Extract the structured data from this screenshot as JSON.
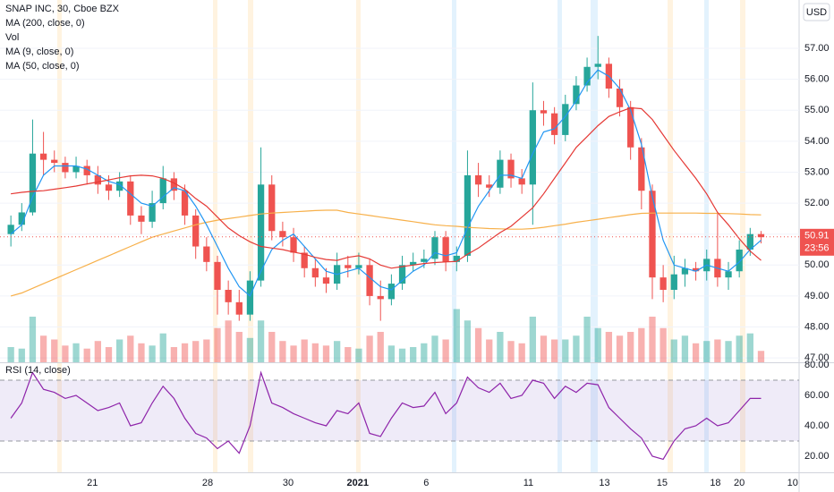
{
  "chart_data": [
    {
      "type": "candlestick",
      "title": "SNAP INC, 30, Cboe BZX",
      "currency": "USD",
      "xlim": [
        -1,
        72.5
      ],
      "ylim": [
        46.86,
        58.56
      ],
      "yticks": [
        {
          "value": 47,
          "label": "47.00"
        },
        {
          "value": 48,
          "label": "48.00"
        },
        {
          "value": 49,
          "label": "49.00"
        },
        {
          "value": 50,
          "label": "50.00"
        },
        {
          "value": 51,
          "label": "51.00"
        },
        {
          "value": 52,
          "label": "52.00"
        },
        {
          "value": 53,
          "label": "53.00"
        },
        {
          "value": 54,
          "label": "54.00"
        },
        {
          "value": 55,
          "label": "55.00"
        },
        {
          "value": 56,
          "label": "56.00"
        },
        {
          "value": 57,
          "label": "57.00"
        }
      ],
      "up_color": "#26a69a",
      "down_color": "#ef5350",
      "open": [
        51.0,
        51.3,
        51.7,
        53.6,
        53.4,
        53.3,
        53.0,
        53.2,
        52.9,
        52.6,
        52.4,
        52.7,
        51.6,
        51.4,
        52.0,
        52.8,
        52.4,
        51.6,
        50.6,
        50.1,
        49.2,
        48.8,
        48.4,
        49.5,
        52.6,
        51.1,
        50.9,
        50.4,
        49.9,
        49.6,
        49.4,
        50.0,
        49.9,
        50.0,
        49.0,
        48.9,
        49.4,
        50.0,
        50.1,
        50.2,
        50.9,
        50.1,
        50.3,
        52.9,
        52.6,
        52.5,
        53.4,
        52.8,
        52.6,
        55.0,
        54.9,
        54.2,
        55.2,
        55.8,
        56.4,
        56.5,
        55.7,
        55.1,
        53.8,
        52.4,
        49.6,
        49.2,
        49.7,
        49.9,
        49.8,
        50.2,
        49.6,
        49.8,
        50.5,
        51.0
      ],
      "high": [
        51.6,
        52.0,
        54.7,
        54.3,
        53.7,
        53.5,
        53.5,
        53.4,
        53.2,
        52.9,
        53.0,
        52.9,
        51.9,
        52.4,
        53.2,
        53.0,
        52.6,
        51.8,
        50.9,
        50.3,
        49.5,
        49.2,
        49.8,
        53.8,
        52.9,
        51.4,
        51.2,
        50.6,
        50.2,
        49.9,
        50.4,
        50.3,
        50.4,
        50.2,
        49.5,
        49.7,
        50.3,
        50.4,
        50.5,
        51.1,
        51.1,
        50.6,
        53.7,
        53.3,
        52.9,
        53.7,
        53.6,
        53.1,
        55.9,
        55.3,
        55.1,
        55.5,
        56.1,
        56.7,
        57.4,
        56.7,
        56.0,
        55.3,
        54.1,
        52.6,
        50.0,
        50.3,
        50.2,
        50.1,
        50.5,
        51.7,
        50.1,
        50.8,
        51.2,
        51.1
      ],
      "low": [
        50.6,
        51.1,
        51.6,
        52.9,
        53.0,
        52.8,
        52.8,
        52.6,
        52.3,
        52.1,
        52.2,
        51.3,
        51.0,
        51.2,
        51.8,
        52.1,
        51.3,
        50.2,
        49.8,
        48.4,
        48.4,
        48.2,
        48.2,
        49.3,
        50.8,
        50.6,
        50.1,
        49.6,
        49.3,
        49.1,
        49.2,
        49.6,
        49.7,
        48.7,
        48.2,
        48.7,
        49.2,
        49.8,
        49.9,
        50.0,
        49.8,
        49.8,
        50.1,
        52.2,
        52.2,
        52.3,
        52.5,
        52.3,
        51.3,
        54.5,
        53.9,
        54.0,
        55.0,
        55.6,
        56.0,
        55.4,
        54.8,
        53.4,
        51.8,
        48.9,
        48.8,
        48.9,
        49.3,
        49.5,
        49.5,
        49.3,
        49.2,
        49.6,
        50.3,
        50.7
      ],
      "close": [
        51.3,
        51.7,
        53.6,
        53.4,
        53.3,
        53.0,
        53.2,
        52.9,
        52.6,
        52.4,
        52.7,
        51.6,
        51.4,
        52.0,
        52.8,
        52.4,
        51.6,
        50.6,
        50.1,
        49.2,
        48.8,
        48.4,
        49.5,
        52.6,
        51.1,
        50.9,
        50.4,
        49.9,
        49.6,
        49.4,
        50.0,
        49.9,
        50.0,
        49.0,
        48.9,
        49.4,
        50.0,
        50.1,
        50.2,
        50.9,
        50.1,
        50.3,
        52.9,
        52.6,
        52.5,
        53.4,
        52.8,
        52.6,
        55.0,
        54.9,
        54.2,
        55.2,
        55.8,
        56.4,
        56.5,
        55.7,
        55.1,
        53.8,
        52.4,
        49.6,
        49.2,
        49.7,
        49.9,
        49.8,
        50.2,
        49.6,
        49.8,
        50.5,
        51.0,
        50.9
      ],
      "last_price": 50.91,
      "countdown": "23:56",
      "series": [
        {
          "name": "MA (200, close, 0)",
          "kind": "line",
          "color": "#f7b04a",
          "values": [
            49.0,
            49.1,
            49.25,
            49.4,
            49.55,
            49.7,
            49.85,
            50.0,
            50.15,
            50.3,
            50.45,
            50.6,
            50.75,
            50.9,
            51.0,
            51.1,
            51.2,
            51.3,
            51.38,
            51.45,
            51.5,
            51.55,
            51.6,
            51.65,
            51.68,
            51.7,
            51.72,
            51.74,
            51.76,
            51.77,
            51.77,
            51.7,
            51.65,
            51.6,
            51.55,
            51.5,
            51.45,
            51.4,
            51.35,
            51.3,
            51.27,
            51.25,
            51.22,
            51.2,
            51.18,
            51.17,
            51.16,
            51.16,
            51.18,
            51.22,
            51.27,
            51.32,
            51.38,
            51.43,
            51.48,
            51.53,
            51.58,
            51.63,
            51.67,
            51.68,
            51.68,
            51.68,
            51.68,
            51.68,
            51.67,
            51.67,
            51.66,
            51.65,
            51.63,
            51.62
          ]
        },
        {
          "name": "Vol",
          "kind": "volume",
          "values": [
            20,
            18,
            60,
            35,
            30,
            22,
            25,
            18,
            28,
            20,
            30,
            35,
            25,
            22,
            38,
            20,
            25,
            28,
            30,
            45,
            55,
            40,
            32,
            55,
            40,
            28,
            22,
            30,
            25,
            22,
            28,
            20,
            18,
            35,
            40,
            22,
            18,
            20,
            25,
            35,
            30,
            70,
            55,
            45,
            30,
            40,
            28,
            25,
            60,
            35,
            30,
            30,
            35,
            60,
            45,
            40,
            35,
            40,
            45,
            60,
            45,
            30,
            35,
            25,
            28,
            30,
            28,
            35,
            38,
            15
          ]
        },
        {
          "name": "MA (9, close, 0)",
          "kind": "line",
          "color": "#2196f3",
          "values": [
            51.0,
            51.3,
            52.2,
            52.9,
            53.2,
            53.2,
            53.2,
            53.1,
            52.9,
            52.7,
            52.6,
            52.3,
            52.0,
            51.9,
            52.2,
            52.5,
            52.4,
            51.9,
            51.3,
            50.6,
            49.9,
            49.3,
            49.0,
            49.8,
            50.5,
            50.8,
            51.0,
            50.6,
            50.2,
            49.8,
            49.7,
            49.8,
            49.9,
            49.6,
            49.3,
            49.2,
            49.5,
            49.8,
            50.0,
            50.4,
            50.3,
            50.4,
            51.2,
            51.9,
            52.4,
            52.9,
            52.9,
            52.8,
            53.6,
            54.3,
            54.4,
            54.8,
            55.3,
            55.9,
            56.3,
            56.1,
            55.7,
            55.0,
            53.9,
            52.2,
            50.8,
            50.0,
            49.9,
            49.8,
            50.0,
            49.9,
            49.8,
            50.1,
            50.5,
            50.8
          ]
        },
        {
          "name": "MA (50, close, 0)",
          "kind": "line",
          "color": "#e53935",
          "values": [
            52.3,
            52.35,
            52.38,
            52.4,
            52.45,
            52.5,
            52.55,
            52.62,
            52.68,
            52.75,
            52.82,
            52.88,
            52.9,
            52.88,
            52.8,
            52.65,
            52.45,
            52.15,
            51.9,
            51.55,
            51.2,
            50.95,
            50.75,
            50.6,
            50.55,
            50.5,
            50.42,
            50.35,
            50.25,
            50.18,
            50.15,
            50.25,
            50.3,
            50.2,
            50.0,
            49.9,
            49.95,
            50.0,
            50.05,
            50.08,
            50.1,
            50.12,
            50.35,
            50.55,
            50.8,
            51.05,
            51.25,
            51.55,
            51.85,
            52.3,
            52.8,
            53.3,
            53.8,
            54.15,
            54.5,
            54.8,
            54.95,
            55.08,
            55.05,
            54.7,
            54.2,
            53.7,
            53.25,
            52.8,
            52.3,
            51.7,
            51.3,
            50.85,
            50.45,
            50.15
          ]
        }
      ]
    },
    {
      "type": "line",
      "title": "RSI (14, close)",
      "color": "#8e24aa",
      "xlim": [
        -1,
        72.5
      ],
      "ylim": [
        9.4,
        80.6
      ],
      "yticks": [
        {
          "value": 20,
          "label": "20.00"
        },
        {
          "value": 40,
          "label": "40.00"
        },
        {
          "value": 60,
          "label": "60.00"
        },
        {
          "value": 80,
          "label": "80.00"
        }
      ],
      "band": [
        30,
        70
      ],
      "xticks": [
        {
          "value": 7.5,
          "label": "21"
        },
        {
          "value": 18.1,
          "label": "28"
        },
        {
          "value": 25.5,
          "label": "30"
        },
        {
          "value": 31.9,
          "label": "2021"
        },
        {
          "value": 38.2,
          "label": "6"
        },
        {
          "value": 47.6,
          "label": "11"
        },
        {
          "value": 54.6,
          "label": "13"
        },
        {
          "value": 59.9,
          "label": "15"
        },
        {
          "value": 64.8,
          "label": "18"
        },
        {
          "value": 67.0,
          "label": "20"
        },
        {
          "value": 71.9,
          "label": "10"
        }
      ],
      "values": [
        45,
        55,
        75,
        64,
        62,
        58,
        60,
        55,
        50,
        52,
        55,
        40,
        42,
        55,
        66,
        58,
        45,
        35,
        32,
        25,
        30,
        22,
        40,
        75,
        55,
        52,
        48,
        45,
        42,
        40,
        50,
        48,
        55,
        35,
        33,
        45,
        55,
        52,
        53,
        62,
        48,
        55,
        72,
        65,
        62,
        68,
        58,
        60,
        70,
        68,
        58,
        66,
        62,
        68,
        67,
        52,
        45,
        38,
        32,
        20,
        18,
        30,
        38,
        40,
        45,
        40,
        42,
        50,
        58,
        58
      ]
    }
  ]
}
